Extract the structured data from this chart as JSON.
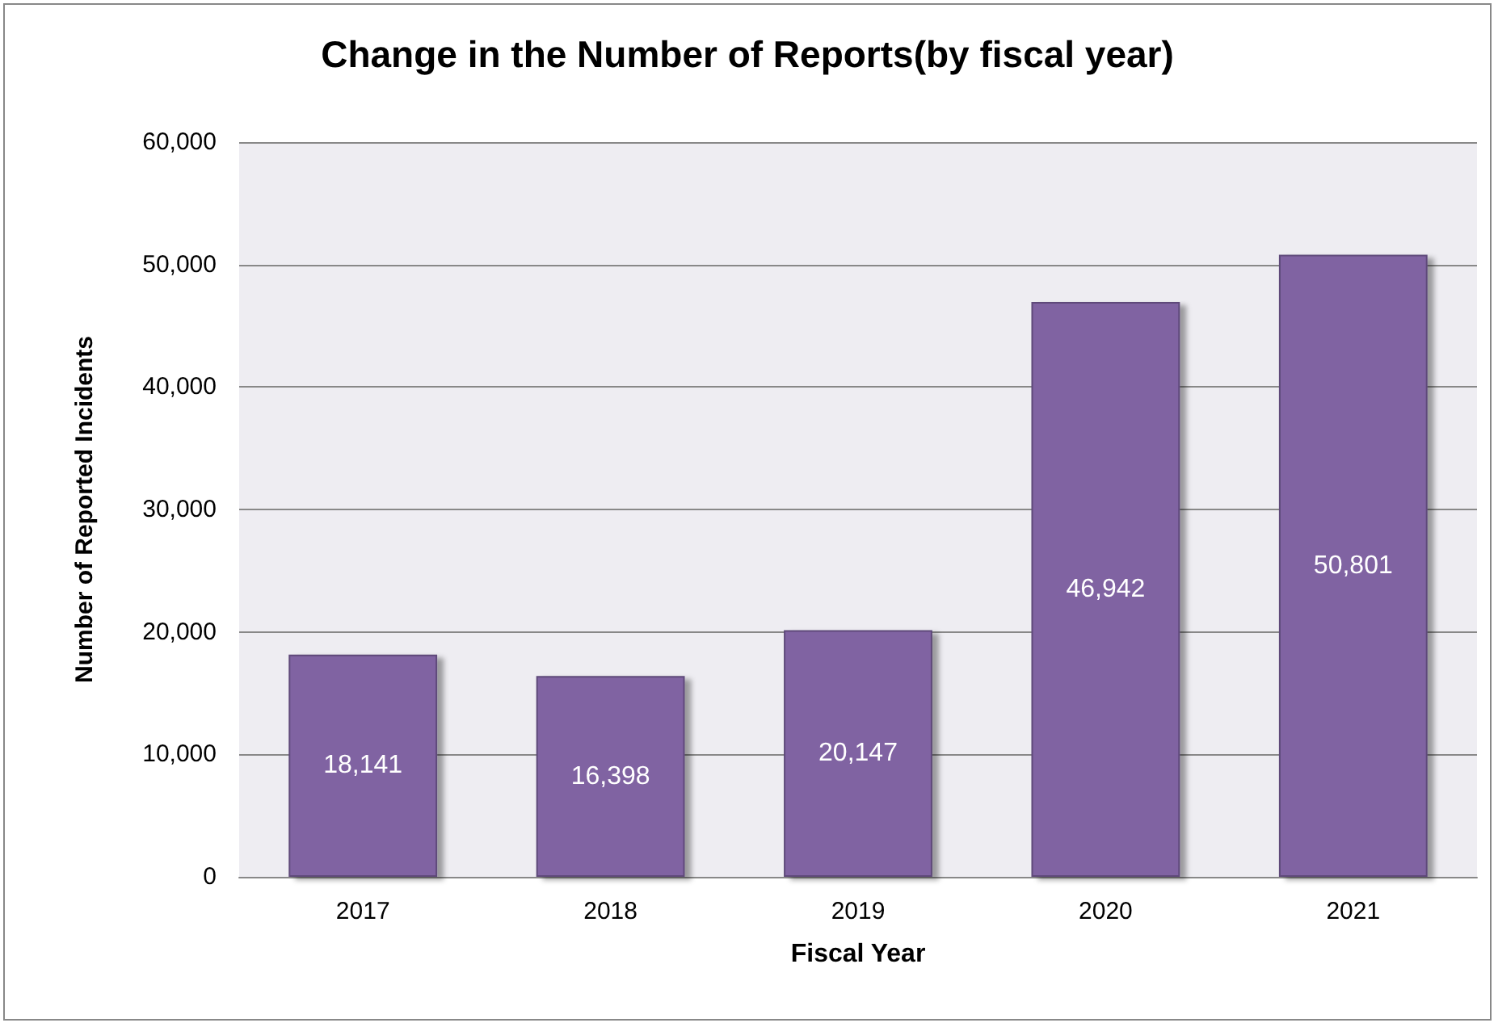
{
  "chart_data": {
    "type": "bar",
    "title": "Change in the Number of Reports(by fiscal year)",
    "xlabel": "Fiscal Year",
    "ylabel": "Number of Reported Incidents",
    "categories": [
      "2017",
      "2018",
      "2019",
      "2020",
      "2021"
    ],
    "values": [
      18141,
      16398,
      20147,
      46942,
      50801
    ],
    "color": "#8064a2",
    "ylim": [
      0,
      60000
    ],
    "yticks": [
      {
        "value": 0,
        "label": "0"
      },
      {
        "value": 10000,
        "label": "10,000"
      },
      {
        "value": 20000,
        "label": "20,000"
      },
      {
        "value": 30000,
        "label": "30,000"
      },
      {
        "value": 40000,
        "label": "40,000"
      },
      {
        "value": 50000,
        "label": "50,000"
      },
      {
        "value": 60000,
        "label": "60,000"
      }
    ],
    "value_labels": [
      "18,141",
      "16,398",
      "20,147",
      "46,942",
      "50,801"
    ],
    "grid": "y"
  }
}
